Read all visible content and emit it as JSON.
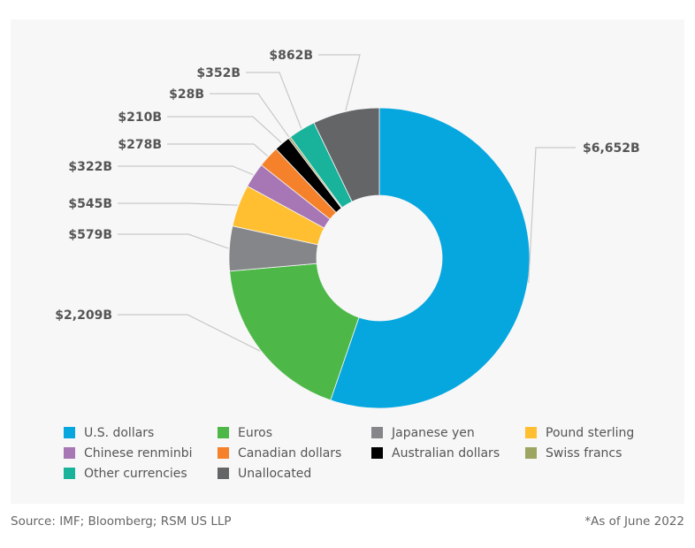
{
  "chart_data": {
    "type": "pie",
    "donut": true,
    "categories": [
      "U.S. dollars",
      "Euros",
      "Japanese yen",
      "Pound sterling",
      "Chinese renminbi",
      "Canadian dollars",
      "Australian dollars",
      "Swiss francs",
      "Other currencies",
      "Unallocated"
    ],
    "values": [
      6652,
      2209,
      579,
      545,
      322,
      278,
      210,
      28,
      352,
      862
    ],
    "unit": "$B",
    "data_labels": [
      "$6,652B",
      "$2,209B",
      "$579B",
      "$545B",
      "$322B",
      "$278B",
      "$210B",
      "$28B",
      "$352B",
      "$862B"
    ],
    "colors": [
      "#06a6df",
      "#4db848",
      "#858689",
      "#ffbf31",
      "#a776b4",
      "#f5822b",
      "#000000",
      "#9ea563",
      "#19b29b",
      "#646567"
    ],
    "legend_position": "bottom"
  },
  "footer": {
    "source": "Source: IMF; Bloomberg; RSM US LLP",
    "note": "*As of June 2022"
  }
}
